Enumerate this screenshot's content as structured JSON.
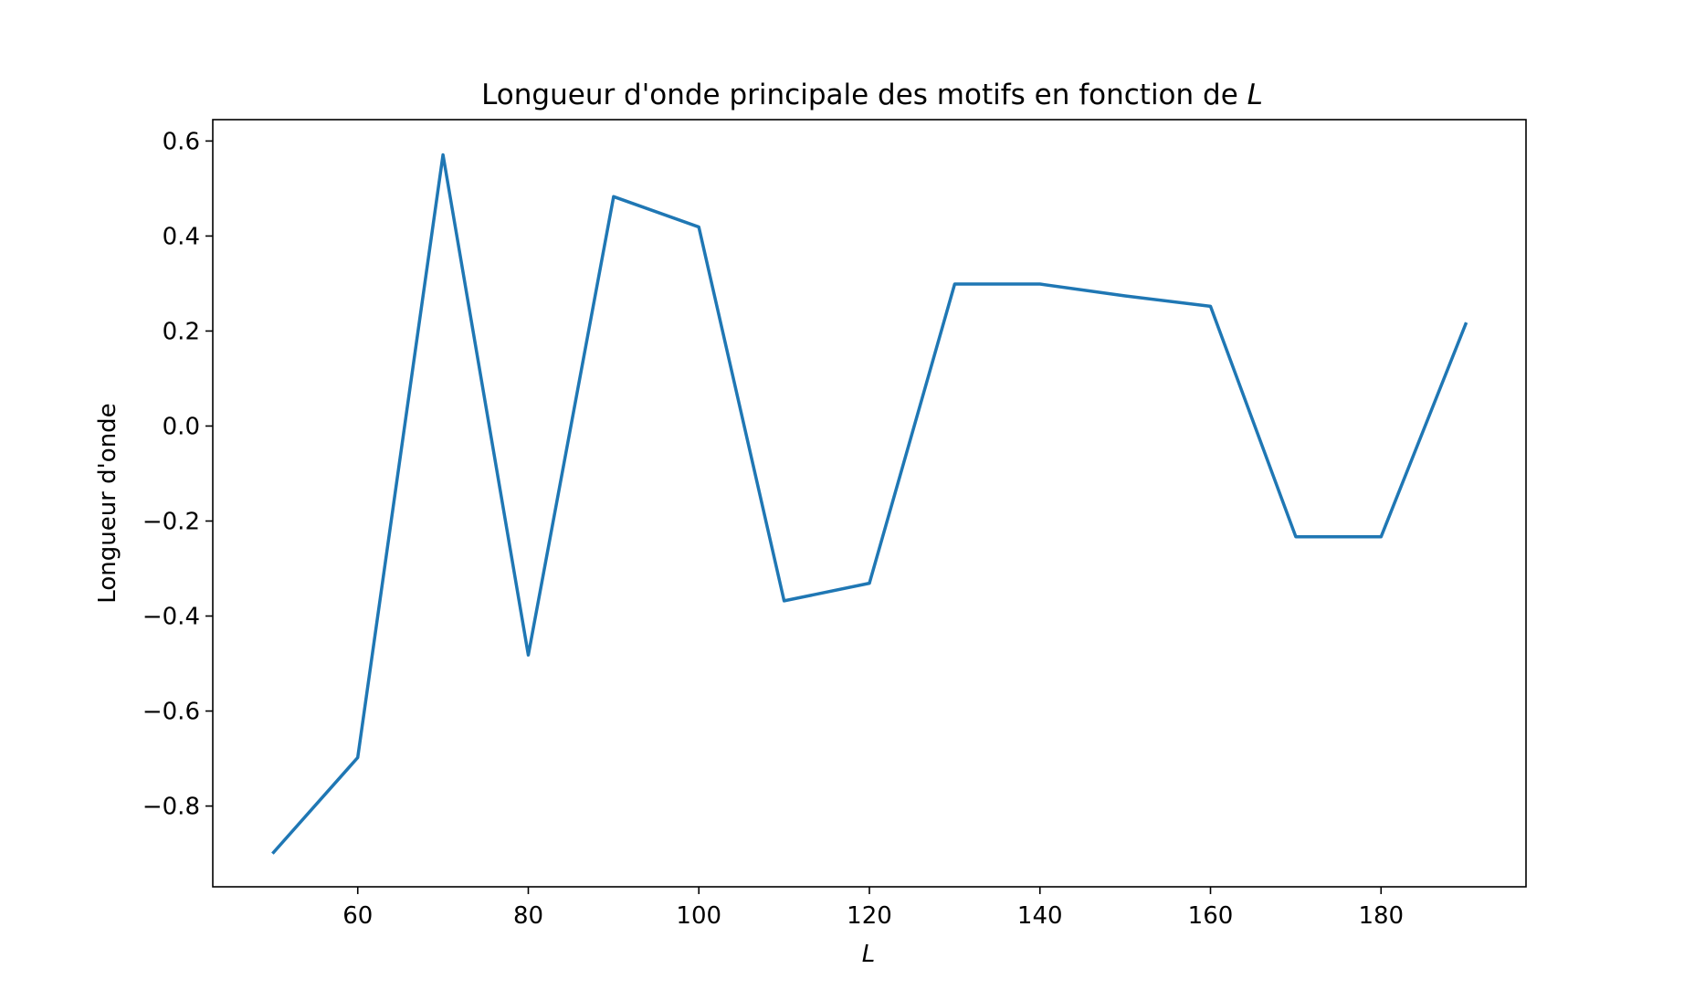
{
  "chart_data": {
    "type": "line",
    "title_text": "Longueur d'onde principale des motifs en fonction de ",
    "title_symbol": "L",
    "xlabel": "L",
    "ylabel": "Longueur d'onde",
    "xlim": [
      43,
      197
    ],
    "ylim": [
      -0.97,
      0.645
    ],
    "xticks": [
      60,
      80,
      100,
      120,
      140,
      160,
      180
    ],
    "xtick_labels": [
      "60",
      "80",
      "100",
      "120",
      "140",
      "160",
      "180"
    ],
    "yticks": [
      -0.8,
      -0.6,
      -0.4,
      -0.2,
      0.0,
      0.2,
      0.4,
      0.6
    ],
    "ytick_labels": [
      "−0.8",
      "−0.6",
      "−0.4",
      "−0.2",
      "0.0",
      "0.2",
      "0.4",
      "0.6"
    ],
    "grid": false,
    "series": [
      {
        "color": "#1f77b4",
        "x": [
          50,
          60,
          70,
          80,
          90,
          100,
          110,
          120,
          130,
          140,
          150,
          160,
          170,
          180,
          190
        ],
        "y": [
          -0.9,
          -0.698,
          0.571,
          -0.482,
          0.483,
          0.419,
          -0.368,
          -0.331,
          0.299,
          0.299,
          0.274,
          0.252,
          -0.233,
          -0.233,
          0.218
        ]
      }
    ]
  }
}
